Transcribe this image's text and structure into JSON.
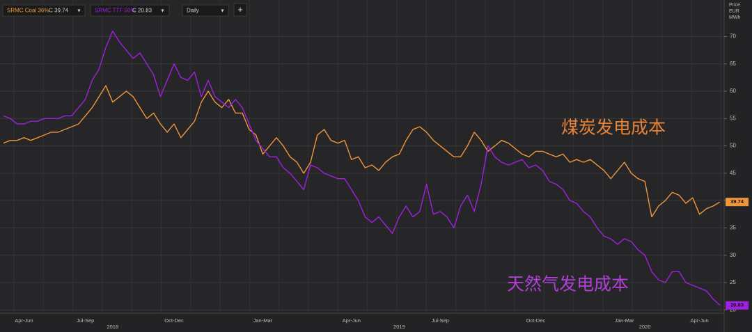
{
  "toolbar": {
    "closes": [
      "C 39.74",
      "C 20.83"
    ],
    "interval": "Daily",
    "add": "+"
  },
  "chart_data": {
    "type": "line",
    "y_label": [
      "Price",
      "EUR",
      "MWh"
    ],
    "annotations": [
      "煤炭发电成本",
      "天然气发电成本"
    ],
    "categories": [
      null,
      null,
      null,
      "Apr-Jun",
      null,
      null,
      null,
      null,
      null,
      null,
      null,
      null,
      "Jul-Sep",
      null,
      null,
      null,
      null,
      null,
      null,
      null,
      null,
      null,
      null,
      null,
      null,
      "Oct-Dec",
      null,
      null,
      null,
      null,
      null,
      null,
      null,
      null,
      null,
      null,
      null,
      null,
      "Jan-Mar",
      null,
      null,
      null,
      null,
      null,
      null,
      null,
      null,
      null,
      null,
      null,
      null,
      "Apr-Jun",
      null,
      null,
      null,
      null,
      null,
      null,
      null,
      null,
      null,
      null,
      null,
      null,
      "Jul-Sep",
      null,
      null,
      null,
      null,
      null,
      null,
      null,
      null,
      null,
      null,
      null,
      null,
      null,
      "Oct-Dec",
      null,
      null,
      null,
      null,
      null,
      null,
      null,
      null,
      null,
      null,
      null,
      null,
      "Jan-Mar",
      null,
      null,
      null,
      null,
      null,
      null,
      null,
      null,
      null,
      null,
      "Apr-Jun",
      null,
      null,
      null
    ],
    "year_categories": [
      null,
      null,
      null,
      null,
      null,
      null,
      null,
      null,
      null,
      null,
      null,
      null,
      null,
      null,
      null,
      null,
      "2018",
      null,
      null,
      null,
      null,
      null,
      null,
      null,
      null,
      null,
      null,
      null,
      null,
      null,
      null,
      null,
      null,
      null,
      null,
      null,
      null,
      null,
      null,
      null,
      null,
      null,
      null,
      null,
      null,
      null,
      null,
      null,
      null,
      null,
      null,
      null,
      null,
      null,
      null,
      null,
      null,
      null,
      "2019",
      null,
      null,
      null,
      null,
      null,
      null,
      null,
      null,
      null,
      null,
      null,
      null,
      null,
      null,
      null,
      null,
      null,
      null,
      null,
      null,
      null,
      null,
      null,
      null,
      null,
      null,
      null,
      null,
      null,
      null,
      null,
      null,
      null,
      null,
      null,
      "2020",
      null,
      null,
      null,
      null,
      null,
      null,
      null,
      null,
      null,
      null,
      null
    ],
    "series": [
      {
        "name": "SRMC Coal 36%",
        "color": "#f0963a",
        "values": [
          50.5,
          51,
          51,
          51.5,
          51,
          51.5,
          52,
          52.5,
          52.5,
          53,
          53.5,
          54,
          55.5,
          57,
          59,
          61,
          58,
          59,
          60,
          59,
          57,
          55,
          56,
          54,
          52.5,
          54,
          51.5,
          53,
          54.5,
          58,
          60,
          58,
          57,
          58.5,
          56,
          56,
          53,
          52,
          48.5,
          50,
          51.5,
          50,
          48,
          47,
          45,
          47,
          52,
          53,
          51,
          50.5,
          51,
          47.5,
          48,
          46,
          46.5,
          45.5,
          47,
          48,
          48.5,
          51,
          53,
          53.5,
          52.5,
          51,
          50,
          49,
          48,
          48,
          50,
          52.5,
          51,
          49,
          50,
          51,
          50.5,
          49.5,
          48.5,
          48,
          49,
          49,
          48.5,
          48,
          48.5,
          47,
          47.5,
          47,
          47.5,
          46.5,
          45.5,
          44,
          45.5,
          47,
          45,
          44,
          43.5,
          37,
          39,
          40,
          41.5,
          41,
          39.5,
          40.5,
          37.5,
          38.5,
          39,
          39.74
        ]
      },
      {
        "name": "SRMC TTF 50%",
        "color": "#a020e0",
        "values": [
          55.5,
          55,
          54,
          54,
          54.5,
          54.5,
          55,
          55,
          55,
          55.5,
          55.5,
          57,
          58.5,
          62,
          64,
          68,
          71,
          69,
          67.5,
          66,
          67,
          65,
          63,
          59,
          62,
          65,
          62.5,
          62,
          63.5,
          59,
          62,
          59,
          58,
          57,
          58.5,
          57,
          54,
          51,
          49.5,
          48,
          48,
          46,
          45,
          43.5,
          42,
          46.5,
          46,
          45,
          44.5,
          44,
          44,
          42,
          40,
          37,
          36,
          37,
          35.5,
          34,
          37,
          39,
          37,
          38,
          43,
          37.5,
          38,
          37,
          35,
          39,
          41,
          38,
          43,
          50,
          48,
          47,
          46.5,
          47,
          47.5,
          46,
          46.5,
          45.5,
          43.5,
          43,
          42,
          40,
          39.5,
          38,
          37,
          35,
          33.5,
          33,
          32,
          33,
          32.5,
          31,
          30,
          27,
          25.5,
          25,
          27,
          27,
          25,
          24.5,
          24,
          23.5,
          22,
          20.83
        ]
      }
    ],
    "ylim": [
      19.4,
      75.4
    ],
    "yticks": [
      20,
      25,
      30,
      35,
      40,
      45,
      50,
      55,
      60,
      65,
      70
    ],
    "grid": true
  }
}
